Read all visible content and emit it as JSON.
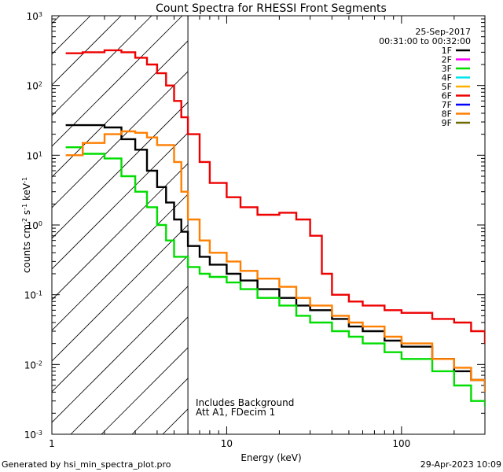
{
  "chart_data": {
    "type": "line",
    "title": "Count Spectra for RHESSI Front Segments",
    "xlabel": "Energy (keV)",
    "ylabel_main": "counts cm",
    "ylabel_exp1": "-2",
    "ylabel_mid": " s",
    "ylabel_exp2": "-1",
    "ylabel_end": " keV",
    "ylabel_exp3": "-1",
    "x_scale": "log",
    "y_scale": "log",
    "xlim": [
      1,
      300
    ],
    "ylim": [
      0.001,
      1000
    ],
    "x_ticks": [
      {
        "value": 1,
        "label": "1"
      },
      {
        "value": 10,
        "label": "10"
      },
      {
        "value": 100,
        "label": "100"
      }
    ],
    "y_ticks": [
      {
        "value": 0.001,
        "base": "10",
        "exp": "-3"
      },
      {
        "value": 0.01,
        "base": "10",
        "exp": "-2"
      },
      {
        "value": 0.1,
        "base": "10",
        "exp": "-1"
      },
      {
        "value": 1,
        "base": "10",
        "exp": "0"
      },
      {
        "value": 10,
        "base": "10",
        "exp": "1"
      },
      {
        "value": 100,
        "base": "10",
        "exp": "2"
      },
      {
        "value": 1000,
        "base": "10",
        "exp": "3"
      }
    ],
    "date": "25-Sep-2017",
    "time_range": "00:31:00 to 00:32:00",
    "threshold_energy": 6,
    "hatched_region": [
      1,
      6
    ],
    "annotation_1": "Includes Background",
    "annotation_2": "Att A1, FDecim 1",
    "series": [
      {
        "name": "1F",
        "color": "#000000",
        "points": [
          [
            1.2,
            27
          ],
          [
            1.5,
            27
          ],
          [
            2,
            25
          ],
          [
            2.5,
            17
          ],
          [
            3,
            12
          ],
          [
            3.5,
            6
          ],
          [
            4,
            3.5
          ],
          [
            4.5,
            2.1
          ],
          [
            5,
            1.2
          ],
          [
            5.5,
            0.8
          ],
          [
            6,
            0.5
          ],
          [
            7,
            0.35
          ],
          [
            8,
            0.27
          ],
          [
            10,
            0.2
          ],
          [
            12,
            0.16
          ],
          [
            15,
            0.12
          ],
          [
            20,
            0.09
          ],
          [
            25,
            0.07
          ],
          [
            30,
            0.06
          ],
          [
            40,
            0.045
          ],
          [
            50,
            0.035
          ],
          [
            60,
            0.03
          ],
          [
            80,
            0.022
          ],
          [
            100,
            0.018
          ],
          [
            150,
            0.012
          ],
          [
            200,
            0.008
          ],
          [
            250,
            0.006
          ],
          [
            300,
            0.005
          ]
        ]
      },
      {
        "name": "2F",
        "color": "#ff00ff",
        "points": []
      },
      {
        "name": "3F",
        "color": "#00dd00",
        "points": [
          [
            1.2,
            13
          ],
          [
            1.5,
            10.5
          ],
          [
            2,
            9
          ],
          [
            2.5,
            5
          ],
          [
            3,
            3
          ],
          [
            3.5,
            1.8
          ],
          [
            4,
            1
          ],
          [
            4.5,
            0.6
          ],
          [
            5,
            0.35
          ],
          [
            6,
            0.25
          ],
          [
            7,
            0.2
          ],
          [
            8,
            0.18
          ],
          [
            10,
            0.15
          ],
          [
            12,
            0.12
          ],
          [
            15,
            0.09
          ],
          [
            20,
            0.07
          ],
          [
            25,
            0.05
          ],
          [
            30,
            0.04
          ],
          [
            40,
            0.03
          ],
          [
            50,
            0.025
          ],
          [
            60,
            0.02
          ],
          [
            80,
            0.015
          ],
          [
            100,
            0.012
          ],
          [
            150,
            0.008
          ],
          [
            200,
            0.005
          ],
          [
            250,
            0.003
          ],
          [
            300,
            0.0025
          ]
        ]
      },
      {
        "name": "4F",
        "color": "#00e5ee",
        "points": []
      },
      {
        "name": "5F",
        "color": "#ffb000",
        "points": []
      },
      {
        "name": "6F",
        "color": "#ee0000",
        "points": [
          [
            1.2,
            290
          ],
          [
            1.5,
            300
          ],
          [
            2,
            320
          ],
          [
            2.5,
            300
          ],
          [
            3,
            250
          ],
          [
            3.5,
            200
          ],
          [
            4,
            150
          ],
          [
            4.5,
            100
          ],
          [
            5,
            60
          ],
          [
            5.5,
            35
          ],
          [
            6,
            20
          ],
          [
            7,
            8
          ],
          [
            8,
            4
          ],
          [
            10,
            2.5
          ],
          [
            12,
            1.8
          ],
          [
            15,
            1.4
          ],
          [
            20,
            1.5
          ],
          [
            25,
            1.2
          ],
          [
            30,
            0.7
          ],
          [
            35,
            0.2
          ],
          [
            40,
            0.1
          ],
          [
            50,
            0.08
          ],
          [
            60,
            0.07
          ],
          [
            80,
            0.06
          ],
          [
            100,
            0.055
          ],
          [
            150,
            0.045
          ],
          [
            200,
            0.04
          ],
          [
            250,
            0.03
          ],
          [
            300,
            0.02
          ]
        ]
      },
      {
        "name": "7F",
        "color": "#0000ff",
        "points": []
      },
      {
        "name": "8F",
        "color": "#ff7f00",
        "points": [
          [
            1.2,
            10
          ],
          [
            1.5,
            15
          ],
          [
            2,
            20
          ],
          [
            2.5,
            22
          ],
          [
            3,
            21
          ],
          [
            3.5,
            18
          ],
          [
            4,
            14
          ],
          [
            5,
            8
          ],
          [
            5.5,
            3
          ],
          [
            6,
            1.2
          ],
          [
            7,
            0.6
          ],
          [
            8,
            0.4
          ],
          [
            10,
            0.3
          ],
          [
            12,
            0.22
          ],
          [
            15,
            0.17
          ],
          [
            20,
            0.13
          ],
          [
            25,
            0.09
          ],
          [
            30,
            0.07
          ],
          [
            40,
            0.05
          ],
          [
            50,
            0.04
          ],
          [
            60,
            0.035
          ],
          [
            80,
            0.025
          ],
          [
            100,
            0.02
          ],
          [
            150,
            0.012
          ],
          [
            200,
            0.009
          ],
          [
            250,
            0.006
          ],
          [
            300,
            0.004
          ]
        ]
      },
      {
        "name": "9F",
        "color": "#6b6b00",
        "points": []
      }
    ]
  },
  "footer_left": "Generated by hsi_min_spectra_plot.pro",
  "footer_right": "29-Apr-2023 10:09"
}
